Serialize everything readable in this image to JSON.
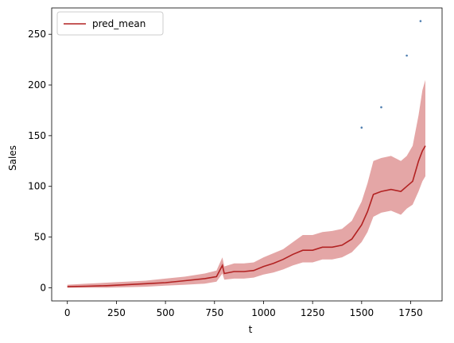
{
  "chart_data": {
    "type": "line",
    "title": "",
    "xlabel": "t",
    "ylabel": "Sales",
    "xlim": [
      -80,
      1910
    ],
    "ylim": [
      -13,
      276
    ],
    "xticks": [
      0,
      250,
      500,
      750,
      1000,
      1250,
      1500,
      1750
    ],
    "yticks": [
      0,
      50,
      100,
      150,
      200,
      250
    ],
    "grid": false,
    "legend": {
      "position": "top-left",
      "entries": [
        "pred_mean"
      ]
    },
    "colors": {
      "pred_mean": "#b22222",
      "interval": "#d98080",
      "observed": "#4f7fb0"
    },
    "series": [
      {
        "name": "pred_mean",
        "x": [
          0,
          100,
          200,
          300,
          400,
          500,
          600,
          700,
          760,
          790,
          800,
          850,
          900,
          950,
          1000,
          1050,
          1100,
          1150,
          1200,
          1250,
          1300,
          1350,
          1400,
          1450,
          1500,
          1530,
          1560,
          1600,
          1650,
          1700,
          1730,
          1760,
          1790,
          1810,
          1825
        ],
        "values": [
          1,
          1.5,
          2,
          3,
          4,
          5,
          7,
          9,
          11,
          22,
          14,
          16,
          16,
          17,
          21,
          24,
          28,
          33,
          37,
          37,
          40,
          40,
          42,
          48,
          62,
          75,
          92,
          95,
          97,
          95,
          100,
          105,
          125,
          135,
          140
        ]
      },
      {
        "name": "interval_upper",
        "x": [
          0,
          100,
          200,
          300,
          400,
          500,
          600,
          700,
          760,
          790,
          800,
          850,
          900,
          950,
          1000,
          1050,
          1100,
          1150,
          1200,
          1250,
          1300,
          1350,
          1400,
          1450,
          1500,
          1530,
          1560,
          1600,
          1650,
          1700,
          1730,
          1760,
          1790,
          1810,
          1825
        ],
        "values": [
          3,
          4,
          5,
          6,
          7,
          9,
          11,
          14,
          17,
          30,
          21,
          24,
          24,
          25,
          30,
          34,
          38,
          45,
          52,
          52,
          55,
          56,
          58,
          66,
          85,
          103,
          125,
          128,
          130,
          125,
          130,
          140,
          170,
          195,
          205
        ]
      },
      {
        "name": "interval_lower",
        "x": [
          0,
          100,
          200,
          300,
          400,
          500,
          600,
          700,
          760,
          790,
          800,
          850,
          900,
          950,
          1000,
          1050,
          1100,
          1150,
          1200,
          1250,
          1300,
          1350,
          1400,
          1450,
          1500,
          1530,
          1560,
          1600,
          1650,
          1700,
          1730,
          1760,
          1790,
          1810,
          1825
        ],
        "values": [
          0,
          0,
          0,
          0.5,
          1,
          2,
          3,
          4,
          6,
          14,
          8,
          9,
          9,
          10,
          13,
          15,
          18,
          22,
          25,
          25,
          28,
          28,
          30,
          35,
          45,
          55,
          70,
          74,
          76,
          72,
          78,
          82,
          95,
          105,
          110
        ]
      },
      {
        "name": "observed_outliers",
        "x": [
          1500,
          1600,
          1730,
          1800
        ],
        "values": [
          158,
          178,
          229,
          263
        ]
      }
    ]
  }
}
